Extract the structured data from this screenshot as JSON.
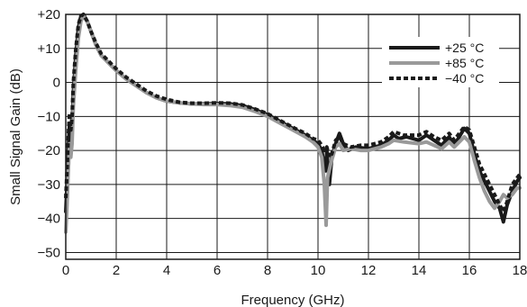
{
  "chart_data": {
    "type": "line",
    "xlabel": "Frequency (GHz)",
    "ylabel": "Small Signal Gain (dB)",
    "xlim": [
      0,
      18
    ],
    "ylim": [
      -52,
      20
    ],
    "x_ticks": [
      0,
      2,
      4,
      6,
      8,
      10,
      12,
      14,
      16,
      18
    ],
    "x_tick_labels": [
      "0",
      "2",
      "4",
      "6",
      "8",
      "10",
      "12",
      "14",
      "16",
      "18"
    ],
    "y_ticks": [
      20,
      10,
      0,
      -10,
      -20,
      -30,
      -40,
      -50
    ],
    "y_tick_labels": [
      "+20",
      "+10",
      "0",
      "−10",
      "−20",
      "−30",
      "−40",
      "−50"
    ],
    "grid": true,
    "legend_position": "top-right",
    "series": [
      {
        "name": "+25 °C",
        "color": "#1a1a1a",
        "style": "solid",
        "points": [
          [
            0.0,
            -38
          ],
          [
            0.05,
            -30
          ],
          [
            0.1,
            -20
          ],
          [
            0.15,
            -12
          ],
          [
            0.2,
            -18
          ],
          [
            0.25,
            -14
          ],
          [
            0.3,
            -3
          ],
          [
            0.4,
            8
          ],
          [
            0.5,
            16
          ],
          [
            0.6,
            19.5
          ],
          [
            0.7,
            20
          ],
          [
            0.85,
            18
          ],
          [
            1.0,
            15
          ],
          [
            1.2,
            11
          ],
          [
            1.4,
            8
          ],
          [
            1.6,
            6.5
          ],
          [
            1.8,
            5
          ],
          [
            2.0,
            3.5
          ],
          [
            2.4,
            1
          ],
          [
            2.8,
            -1
          ],
          [
            3.2,
            -3
          ],
          [
            3.6,
            -4.5
          ],
          [
            4.0,
            -5.5
          ],
          [
            4.5,
            -6
          ],
          [
            5.0,
            -6.3
          ],
          [
            5.5,
            -6.3
          ],
          [
            6.0,
            -6.2
          ],
          [
            6.5,
            -6.3
          ],
          [
            7.0,
            -6.8
          ],
          [
            7.5,
            -8
          ],
          [
            8.0,
            -9.5
          ],
          [
            8.5,
            -11.5
          ],
          [
            9.0,
            -13.5
          ],
          [
            9.5,
            -15.5
          ],
          [
            9.8,
            -17
          ],
          [
            10.0,
            -18
          ],
          [
            10.15,
            -20
          ],
          [
            10.25,
            -25
          ],
          [
            10.3,
            -26
          ],
          [
            10.35,
            -20
          ],
          [
            10.45,
            -30
          ],
          [
            10.55,
            -22
          ],
          [
            10.7,
            -18
          ],
          [
            10.85,
            -15
          ],
          [
            11.0,
            -18
          ],
          [
            11.2,
            -20
          ],
          [
            11.5,
            -19
          ],
          [
            12.0,
            -19.5
          ],
          [
            12.5,
            -18.5
          ],
          [
            12.8,
            -17
          ],
          [
            13.0,
            -15.5
          ],
          [
            13.2,
            -16.5
          ],
          [
            13.5,
            -16
          ],
          [
            14.0,
            -17
          ],
          [
            14.3,
            -15.5
          ],
          [
            14.6,
            -17
          ],
          [
            14.9,
            -18.5
          ],
          [
            15.2,
            -16
          ],
          [
            15.4,
            -18.5
          ],
          [
            15.6,
            -16
          ],
          [
            15.8,
            -13.5
          ],
          [
            16.0,
            -15
          ],
          [
            16.2,
            -21
          ],
          [
            16.4,
            -26
          ],
          [
            16.6,
            -29
          ],
          [
            16.8,
            -32
          ],
          [
            17.0,
            -35
          ],
          [
            17.2,
            -37
          ],
          [
            17.35,
            -41
          ],
          [
            17.5,
            -36
          ],
          [
            17.7,
            -32
          ],
          [
            17.9,
            -29
          ],
          [
            18.0,
            -28
          ]
        ]
      },
      {
        "name": "+85 °C",
        "color": "#9a9a9a",
        "style": "solid",
        "points": [
          [
            0.0,
            -44
          ],
          [
            0.05,
            -36
          ],
          [
            0.1,
            -26
          ],
          [
            0.15,
            -18
          ],
          [
            0.2,
            -22
          ],
          [
            0.25,
            -18
          ],
          [
            0.3,
            -7
          ],
          [
            0.4,
            4
          ],
          [
            0.5,
            13
          ],
          [
            0.6,
            18
          ],
          [
            0.7,
            19.5
          ],
          [
            0.85,
            18
          ],
          [
            1.0,
            15
          ],
          [
            1.2,
            11
          ],
          [
            1.4,
            8
          ],
          [
            1.6,
            6.5
          ],
          [
            1.8,
            5
          ],
          [
            2.0,
            3.5
          ],
          [
            2.4,
            1
          ],
          [
            2.8,
            -1
          ],
          [
            3.2,
            -3
          ],
          [
            3.6,
            -4.5
          ],
          [
            4.0,
            -5.5
          ],
          [
            4.5,
            -6
          ],
          [
            5.0,
            -6.3
          ],
          [
            5.5,
            -6.5
          ],
          [
            6.0,
            -6.5
          ],
          [
            6.5,
            -6.8
          ],
          [
            7.0,
            -7.3
          ],
          [
            7.5,
            -8.5
          ],
          [
            8.0,
            -10
          ],
          [
            8.5,
            -12
          ],
          [
            9.0,
            -14
          ],
          [
            9.5,
            -16
          ],
          [
            9.8,
            -17.5
          ],
          [
            10.0,
            -19
          ],
          [
            10.15,
            -22
          ],
          [
            10.25,
            -30
          ],
          [
            10.32,
            -42
          ],
          [
            10.38,
            -28
          ],
          [
            10.5,
            -24
          ],
          [
            10.7,
            -19
          ],
          [
            10.85,
            -18
          ],
          [
            11.0,
            -20
          ],
          [
            11.3,
            -19.5
          ],
          [
            11.7,
            -20
          ],
          [
            12.0,
            -20
          ],
          [
            12.5,
            -19
          ],
          [
            12.8,
            -18
          ],
          [
            13.0,
            -17
          ],
          [
            13.4,
            -17.5
          ],
          [
            14.0,
            -18
          ],
          [
            14.3,
            -17.5
          ],
          [
            14.6,
            -18.5
          ],
          [
            14.9,
            -19.5
          ],
          [
            15.2,
            -17.5
          ],
          [
            15.4,
            -19
          ],
          [
            15.6,
            -17.5
          ],
          [
            15.8,
            -16
          ],
          [
            16.0,
            -17.5
          ],
          [
            16.2,
            -23
          ],
          [
            16.4,
            -28
          ],
          [
            16.6,
            -32
          ],
          [
            16.8,
            -35
          ],
          [
            17.0,
            -37
          ],
          [
            17.2,
            -35
          ],
          [
            17.35,
            -33
          ],
          [
            17.5,
            -34
          ],
          [
            17.7,
            -33
          ],
          [
            17.9,
            -31
          ],
          [
            18.0,
            -31
          ]
        ]
      },
      {
        "name": "−40 °C",
        "color": "#1a1a1a",
        "style": "dashed",
        "points": [
          [
            0.0,
            -34
          ],
          [
            0.05,
            -26
          ],
          [
            0.1,
            -16
          ],
          [
            0.15,
            -9
          ],
          [
            0.2,
            -14
          ],
          [
            0.25,
            -10
          ],
          [
            0.3,
            0
          ],
          [
            0.4,
            10
          ],
          [
            0.5,
            17
          ],
          [
            0.6,
            19.5
          ],
          [
            0.7,
            20
          ],
          [
            0.85,
            18
          ],
          [
            1.0,
            15
          ],
          [
            1.2,
            11.5
          ],
          [
            1.4,
            8.5
          ],
          [
            1.6,
            7
          ],
          [
            1.8,
            5.5
          ],
          [
            2.0,
            4
          ],
          [
            2.4,
            1.5
          ],
          [
            2.8,
            -0.5
          ],
          [
            3.2,
            -2.5
          ],
          [
            3.6,
            -4
          ],
          [
            4.0,
            -5
          ],
          [
            4.5,
            -5.8
          ],
          [
            5.0,
            -6.1
          ],
          [
            5.5,
            -6.1
          ],
          [
            6.0,
            -6
          ],
          [
            6.5,
            -6.1
          ],
          [
            7.0,
            -6.6
          ],
          [
            7.5,
            -7.8
          ],
          [
            8.0,
            -9.2
          ],
          [
            8.5,
            -11.2
          ],
          [
            9.0,
            -13.2
          ],
          [
            9.5,
            -15
          ],
          [
            9.8,
            -16.5
          ],
          [
            10.0,
            -17
          ],
          [
            10.15,
            -18.5
          ],
          [
            10.25,
            -20
          ],
          [
            10.35,
            -19
          ],
          [
            10.45,
            -22
          ],
          [
            10.55,
            -21
          ],
          [
            10.7,
            -17
          ],
          [
            10.85,
            -16
          ],
          [
            11.0,
            -18
          ],
          [
            11.3,
            -19
          ],
          [
            11.7,
            -18.5
          ],
          [
            12.0,
            -18.5
          ],
          [
            12.5,
            -17.5
          ],
          [
            12.8,
            -16
          ],
          [
            13.0,
            -14.5
          ],
          [
            13.4,
            -15.5
          ],
          [
            14.0,
            -15.5
          ],
          [
            14.3,
            -14.5
          ],
          [
            14.6,
            -16
          ],
          [
            14.9,
            -17
          ],
          [
            15.2,
            -15
          ],
          [
            15.4,
            -17
          ],
          [
            15.6,
            -15
          ],
          [
            15.8,
            -13
          ],
          [
            16.0,
            -14
          ],
          [
            16.2,
            -19
          ],
          [
            16.4,
            -24
          ],
          [
            16.6,
            -27
          ],
          [
            16.8,
            -30
          ],
          [
            17.0,
            -33
          ],
          [
            17.2,
            -36
          ],
          [
            17.35,
            -38
          ],
          [
            17.5,
            -35
          ],
          [
            17.7,
            -30
          ],
          [
            17.9,
            -28
          ],
          [
            18.0,
            -27
          ]
        ]
      }
    ]
  }
}
